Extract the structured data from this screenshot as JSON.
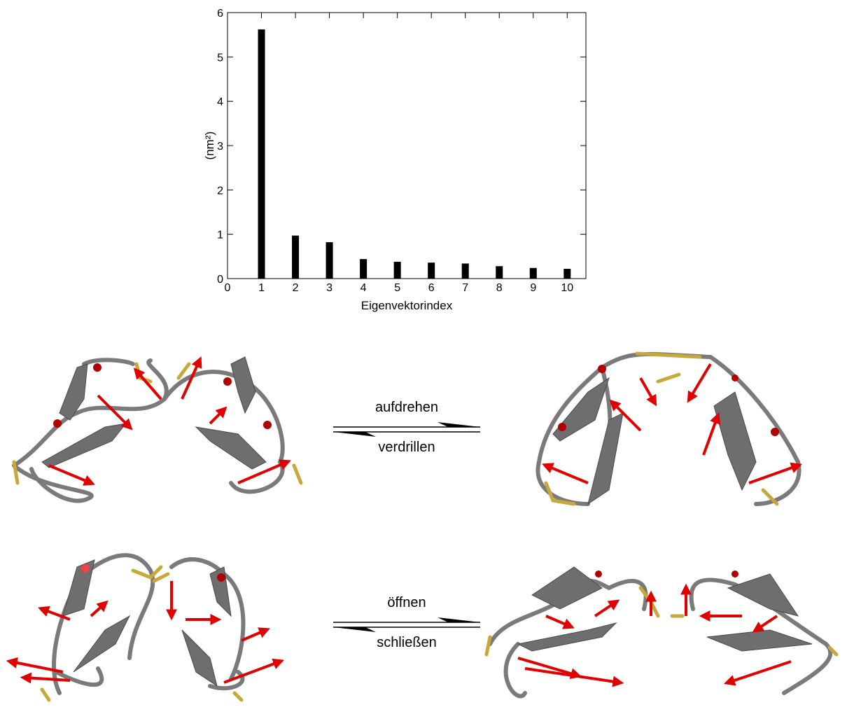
{
  "chart_data": {
    "type": "bar",
    "xlabel": "Eigenvektorindex",
    "ylabel": "(nm²)",
    "x": [
      1,
      2,
      3,
      4,
      5,
      6,
      7,
      8,
      9,
      10
    ],
    "values": [
      5.62,
      0.97,
      0.82,
      0.44,
      0.38,
      0.36,
      0.34,
      0.28,
      0.24,
      0.22
    ],
    "color": "#000000",
    "xlim": [
      0,
      10.55
    ],
    "ylim": [
      0,
      6
    ],
    "xticks": [
      0,
      1,
      2,
      3,
      4,
      5,
      6,
      7,
      8,
      9,
      10
    ],
    "yticks": [
      0,
      1,
      2,
      3,
      4,
      5,
      6
    ],
    "grid": false
  },
  "equilibria": [
    {
      "forward": "aufdrehen",
      "backward": "verdrillen"
    },
    {
      "forward": "öffnen",
      "backward": "schließen"
    }
  ]
}
